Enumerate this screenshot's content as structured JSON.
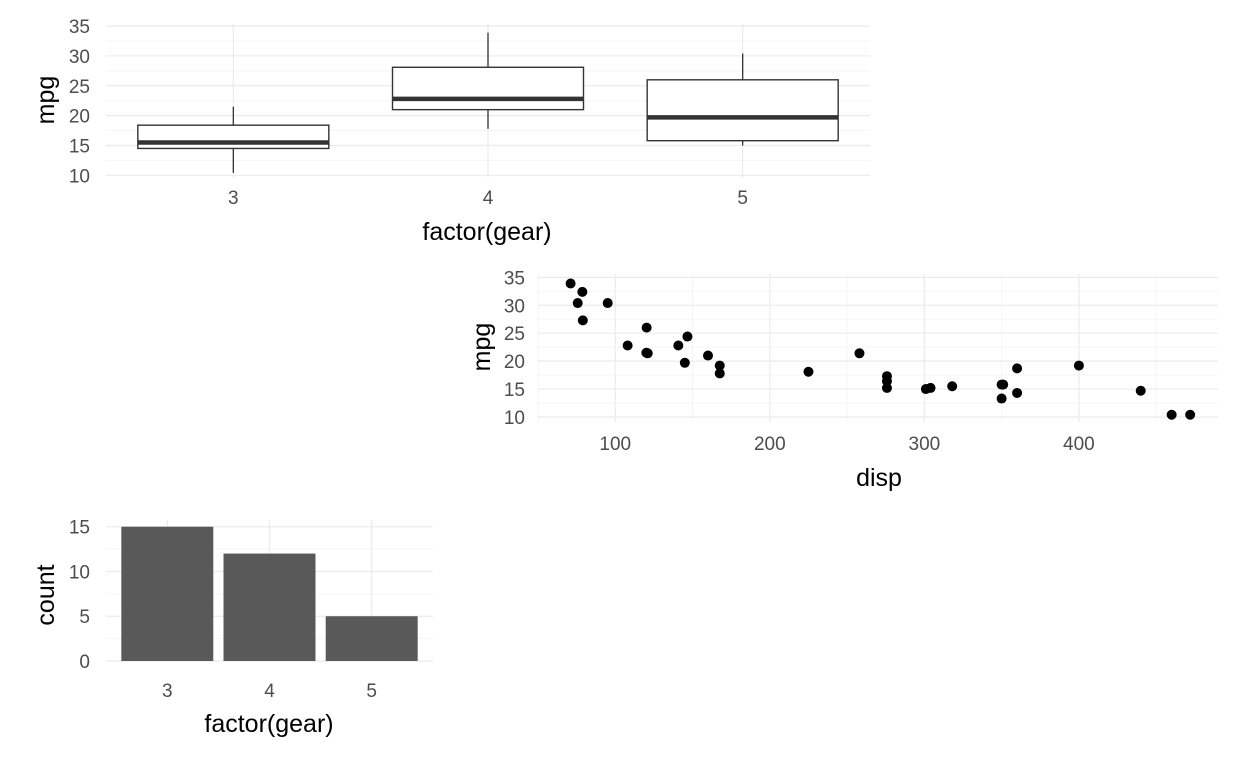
{
  "chart_data": [
    {
      "type": "box",
      "xlabel": "factor(gear)",
      "ylabel": "mpg",
      "ylim": [
        10,
        35
      ],
      "yticks": [
        10,
        15,
        20,
        25,
        30,
        35
      ],
      "grid": true,
      "categories": [
        "3",
        "4",
        "5"
      ],
      "boxes": [
        {
          "min": 10.4,
          "q1": 14.5,
          "median": 15.5,
          "q3": 18.4,
          "max": 21.5
        },
        {
          "min": 17.8,
          "q1": 21.0,
          "median": 22.8,
          "q3": 28.1,
          "max": 33.9
        },
        {
          "min": 15.0,
          "q1": 15.8,
          "median": 19.7,
          "q3": 26.0,
          "max": 30.4
        }
      ]
    },
    {
      "type": "scatter",
      "xlabel": "disp",
      "ylabel": "mpg",
      "xlim": [
        50,
        490
      ],
      "ylim": [
        10,
        35
      ],
      "xticks": [
        100,
        200,
        300,
        400
      ],
      "yticks": [
        10,
        15,
        20,
        25,
        30,
        35
      ],
      "grid": true,
      "points": [
        [
          71.1,
          33.9
        ],
        [
          75.7,
          30.4
        ],
        [
          78.7,
          32.4
        ],
        [
          79.0,
          27.3
        ],
        [
          95.1,
          30.4
        ],
        [
          108.0,
          22.8
        ],
        [
          120.1,
          21.5
        ],
        [
          120.3,
          26.0
        ],
        [
          121.0,
          21.4
        ],
        [
          140.8,
          22.8
        ],
        [
          145.0,
          19.7
        ],
        [
          146.7,
          24.4
        ],
        [
          160.0,
          21.0
        ],
        [
          167.6,
          19.2
        ],
        [
          167.6,
          17.8
        ],
        [
          225.0,
          18.1
        ],
        [
          258.0,
          21.4
        ],
        [
          275.8,
          17.3
        ],
        [
          275.8,
          16.4
        ],
        [
          275.8,
          15.2
        ],
        [
          301.0,
          15.0
        ],
        [
          304.0,
          15.2
        ],
        [
          318.0,
          15.5
        ],
        [
          350.0,
          15.8
        ],
        [
          350.0,
          13.3
        ],
        [
          351.0,
          15.8
        ],
        [
          360.0,
          18.7
        ],
        [
          360.0,
          14.3
        ],
        [
          400.0,
          19.2
        ],
        [
          440.0,
          14.7
        ],
        [
          460.0,
          10.4
        ],
        [
          472.0,
          10.4
        ]
      ]
    },
    {
      "type": "bar",
      "xlabel": "factor(gear)",
      "ylabel": "count",
      "ylim": [
        0,
        15.75
      ],
      "yticks": [
        0,
        5,
        10,
        15
      ],
      "grid": true,
      "categories": [
        "3",
        "4",
        "5"
      ],
      "values": [
        15,
        12,
        5
      ],
      "color": "#595959"
    }
  ]
}
